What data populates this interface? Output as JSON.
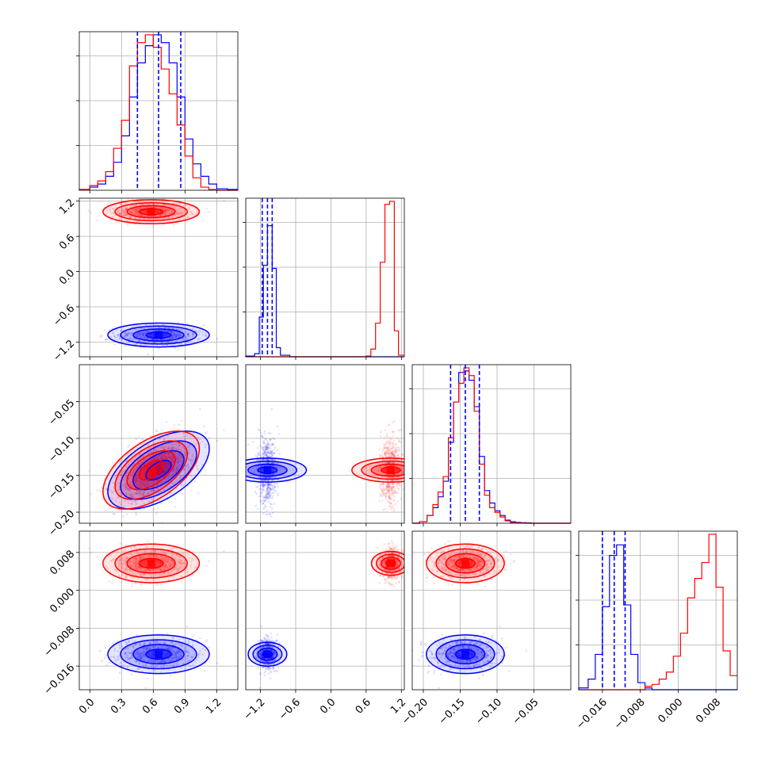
{
  "chart_data": {
    "type": "corner",
    "colors": {
      "series_a": "#0000ff",
      "series_b": "#ff0000",
      "grid": "#b0b0b0"
    },
    "parameters": [
      {
        "range": [
          -0.1,
          1.4
        ],
        "ticks": [
          0.0,
          0.3,
          0.6,
          0.9,
          1.2
        ],
        "tick_labels": [
          "0.0",
          "0.3",
          "0.6",
          "0.9",
          "1.2"
        ]
      },
      {
        "range": [
          -1.45,
          1.25
        ],
        "ticks": [
          -1.2,
          -0.6,
          0.0,
          0.6,
          1.2
        ],
        "tick_labels": [
          "−1.2",
          "−0.6",
          "0.0",
          "0.6",
          "1.2"
        ]
      },
      {
        "range": [
          -0.215,
          0.0
        ],
        "ticks": [
          -0.2,
          -0.15,
          -0.1,
          -0.05
        ],
        "tick_labels": [
          "−0.20",
          "−0.15",
          "−0.10",
          "−0.05"
        ]
      },
      {
        "range": [
          -0.021,
          0.0125
        ],
        "ticks": [
          -0.016,
          -0.008,
          0.0,
          0.008
        ],
        "tick_labels": [
          "−0.016",
          "−0.008",
          "0.000",
          "0.008"
        ]
      }
    ],
    "series": [
      {
        "color": "#0000ff",
        "means": [
          0.65,
          -1.08,
          -0.143,
          -0.0135
        ],
        "stds": [
          0.2,
          0.085,
          0.022,
          0.0017
        ],
        "correlation_01": 0.0,
        "correlation_02": 0.55,
        "quantiles": [
          [
            0.45,
            0.65,
            0.86
          ],
          [
            -1.17,
            -1.08,
            -1.0
          ],
          [
            -0.163,
            -0.143,
            -0.124
          ],
          [
            -0.016,
            -0.0135,
            -0.0112
          ]
        ]
      },
      {
        "color": "#ff0000",
        "means": [
          0.58,
          1.02,
          -0.143,
          0.0057
        ],
        "stds": [
          0.19,
          0.085,
          0.022,
          0.0017
        ],
        "correlation_01": 0.0,
        "correlation_02": 0.55
      }
    ],
    "histograms": [
      {
        "edges": [
          -0.1,
          0.0,
          0.075,
          0.15,
          0.225,
          0.3,
          0.375,
          0.45,
          0.525,
          0.6,
          0.675,
          0.75,
          0.825,
          0.9,
          0.975,
          1.05,
          1.125,
          1.2,
          1.3,
          1.4
        ],
        "a": [
          0.005,
          0.02,
          0.04,
          0.09,
          0.18,
          0.35,
          0.6,
          0.82,
          0.93,
          1.0,
          0.95,
          0.82,
          0.6,
          0.33,
          0.17,
          0.09,
          0.04,
          0.01,
          0.005
        ],
        "b": [
          0.005,
          0.03,
          0.06,
          0.12,
          0.27,
          0.45,
          0.8,
          0.95,
          1.0,
          0.92,
          0.78,
          0.62,
          0.42,
          0.22,
          0.08,
          0.02,
          0.005,
          0.0,
          0.0
        ]
      },
      {
        "edges": [
          -1.45,
          -1.3,
          -1.22,
          -1.15,
          -1.08,
          -1.0,
          -0.93,
          -0.86,
          -0.7,
          0.6,
          0.68,
          0.76,
          0.84,
          0.92,
          1.0,
          1.08,
          1.15,
          1.25
        ],
        "a": [
          0.005,
          0.02,
          0.26,
          0.6,
          0.86,
          0.58,
          0.06,
          0.01,
          0.0,
          0.0,
          0.0,
          0.0,
          0.0,
          0.0,
          0.0,
          0.0,
          0.0
        ],
        "b": [
          0.0,
          0.0,
          0.0,
          0.0,
          0.0,
          0.0,
          0.0,
          0.0,
          0.0,
          0.005,
          0.05,
          0.22,
          0.62,
          1.0,
          1.02,
          0.17,
          0.01
        ]
      },
      {
        "edges": [
          -0.215,
          -0.205,
          -0.195,
          -0.187,
          -0.18,
          -0.173,
          -0.166,
          -0.159,
          -0.152,
          -0.145,
          -0.138,
          -0.131,
          -0.124,
          -0.117,
          -0.11,
          -0.103,
          -0.096,
          -0.089,
          -0.082,
          -0.075,
          -0.068,
          -0.061,
          -0.054,
          0.0
        ],
        "a": [
          0.0,
          0.01,
          0.05,
          0.1,
          0.17,
          0.27,
          0.52,
          0.78,
          0.97,
          0.98,
          0.92,
          0.75,
          0.43,
          0.21,
          0.13,
          0.08,
          0.05,
          0.02,
          0.01,
          0.005,
          0.003,
          0.002,
          0.0
        ],
        "b": [
          0.0,
          0.01,
          0.05,
          0.12,
          0.2,
          0.3,
          0.55,
          0.78,
          0.9,
          1.0,
          0.95,
          0.72,
          0.38,
          0.18,
          0.1,
          0.07,
          0.04,
          0.015,
          0.005,
          0.002,
          0.001,
          0.0,
          0.0
        ]
      },
      {
        "edges": [
          -0.021,
          -0.019,
          -0.0175,
          -0.016,
          -0.0145,
          -0.013,
          -0.0115,
          -0.01,
          -0.0085,
          -0.007,
          -0.0055,
          -0.004,
          -0.0025,
          -0.001,
          0.0005,
          0.002,
          0.0035,
          0.005,
          0.0065,
          0.008,
          0.0095,
          0.011,
          0.0125
        ],
        "a": [
          0.01,
          0.06,
          0.2,
          0.47,
          0.76,
          0.82,
          0.48,
          0.2,
          0.04,
          0.01,
          0.0,
          0.0,
          0.0,
          0.0,
          0.0,
          0.0,
          0.0,
          0.0,
          0.0,
          0.0,
          0.0,
          0.0
        ],
        "b": [
          0.0,
          0.0,
          0.0,
          0.0,
          0.0,
          0.0,
          0.0,
          0.0,
          0.0,
          0.02,
          0.03,
          0.06,
          0.1,
          0.19,
          0.32,
          0.52,
          0.63,
          0.72,
          0.88,
          0.58,
          0.22,
          0.08
        ]
      }
    ]
  }
}
